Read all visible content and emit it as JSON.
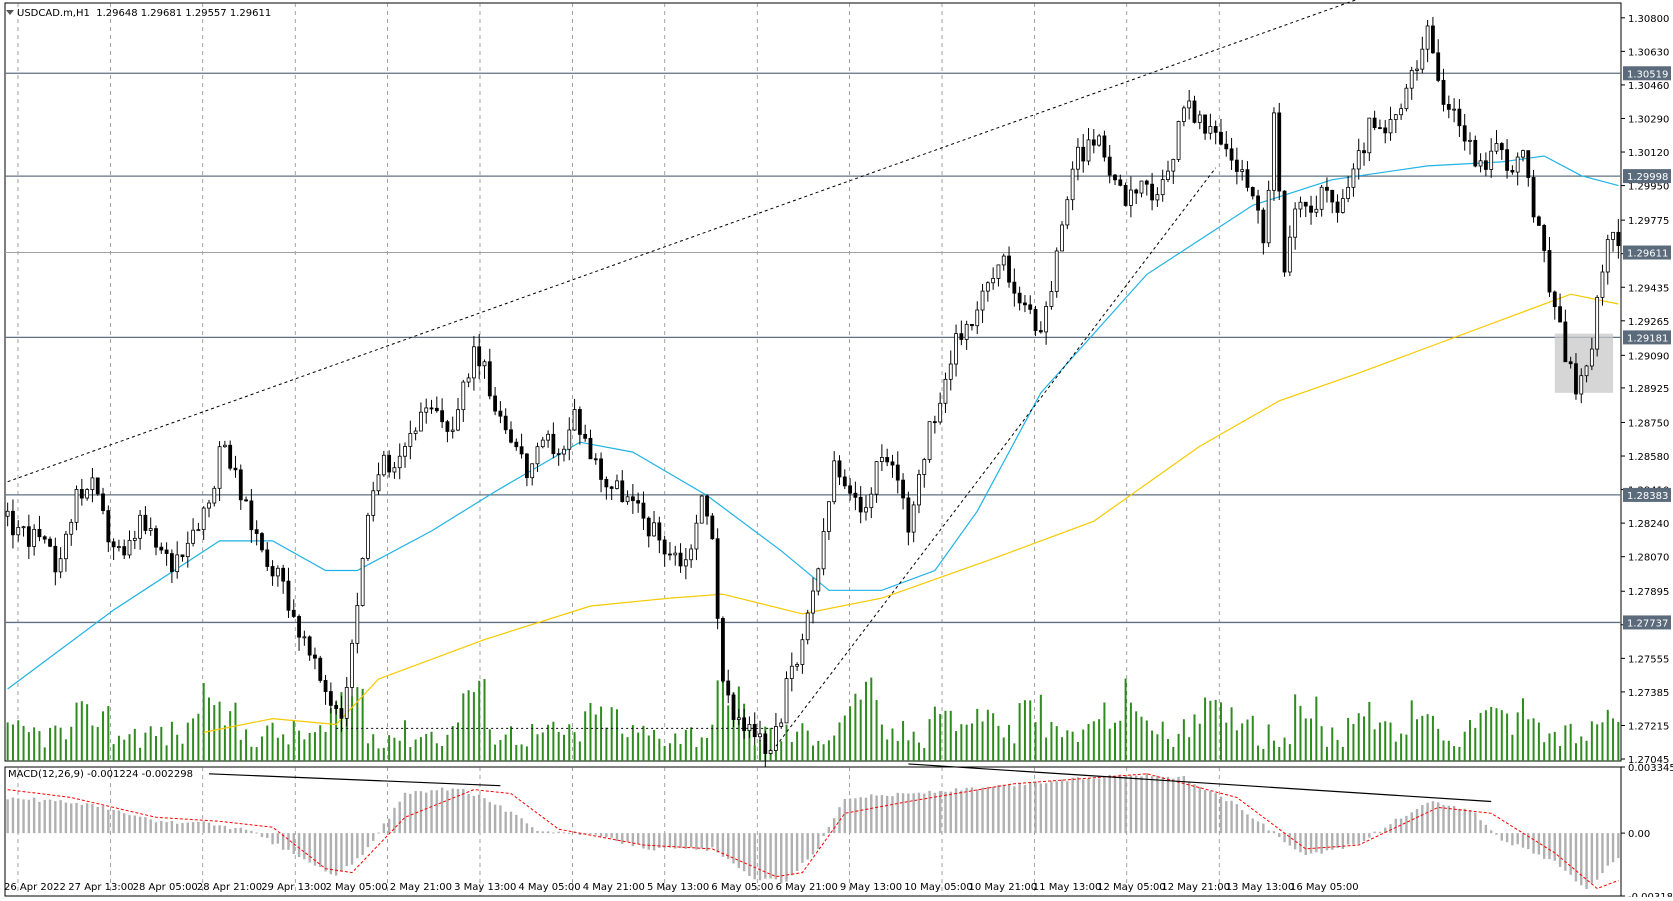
{
  "header": {
    "symbol": "USDCAD.m,H1",
    "ohlc": "1.29648 1.29681 1.29557 1.29611"
  },
  "chart_data": [
    {
      "type": "candlestick",
      "title": "USDCAD.m,H1",
      "ylim": [
        1.27035,
        1.30875
      ],
      "price_ticks": [
        "1.30800",
        "1.30630",
        "1.30460",
        "1.30290",
        "1.30120",
        "1.29950",
        "1.29775",
        "1.29605",
        "1.29435",
        "1.29265",
        "1.29090",
        "1.28925",
        "1.28750",
        "1.28580",
        "1.28410",
        "1.28240",
        "1.28070",
        "1.27895",
        "1.27725",
        "1.27555",
        "1.27385",
        "1.27215",
        "1.27045"
      ],
      "x_labels": [
        "26 Apr 2022",
        "27 Apr 13:00",
        "28 Apr 05:00",
        "28 Apr 21:00",
        "29 Apr 13:00",
        "2 May 05:00",
        "2 May 21:00",
        "3 May 13:00",
        "4 May 05:00",
        "4 May 21:00",
        "5 May 13:00",
        "6 May 05:00",
        "6 May 21:00",
        "9 May 13:00",
        "10 May 05:00",
        "10 May 21:00",
        "11 May 13:00",
        "12 May 05:00",
        "12 May 21:00",
        "13 May 13:00",
        "16 May 05:00"
      ],
      "close_path": [
        [
          0,
          1.28245
        ],
        [
          6,
          1.2815
        ],
        [
          10,
          1.28
        ],
        [
          13,
          1.284
        ],
        [
          16,
          1.2842
        ],
        [
          19,
          1.2818
        ],
        [
          22,
          1.2805
        ],
        [
          25,
          1.2825
        ],
        [
          28,
          1.2812
        ],
        [
          31,
          1.2803
        ],
        [
          34,
          1.2818
        ],
        [
          38,
          1.2835
        ],
        [
          40,
          1.286
        ],
        [
          42,
          1.2855
        ],
        [
          45,
          1.283
        ],
        [
          48,
          1.2812
        ],
        [
          52,
          1.2793
        ],
        [
          55,
          1.277
        ],
        [
          58,
          1.275
        ],
        [
          61,
          1.2735
        ],
        [
          63,
          1.27285
        ],
        [
          65,
          1.276
        ],
        [
          67,
          1.281
        ],
        [
          70,
          1.285
        ],
        [
          74,
          1.286
        ],
        [
          77,
          1.2875
        ],
        [
          80,
          1.288
        ],
        [
          84,
          1.2872
        ],
        [
          86,
          1.289
        ],
        [
          88,
          1.2915
        ],
        [
          92,
          1.2885
        ],
        [
          95,
          1.287
        ],
        [
          98,
          1.285
        ],
        [
          102,
          1.2865
        ],
        [
          105,
          1.286
        ],
        [
          107,
          1.288
        ],
        [
          110,
          1.286
        ],
        [
          113,
          1.2845
        ],
        [
          116,
          1.284
        ],
        [
          119,
          1.283
        ],
        [
          122,
          1.282
        ],
        [
          125,
          1.281
        ],
        [
          128,
          1.2805
        ],
        [
          131,
          1.2835
        ],
        [
          133,
          1.282
        ],
        [
          135,
          1.274
        ],
        [
          137,
          1.273
        ],
        [
          140,
          1.272
        ],
        [
          143,
          1.271
        ],
        [
          145,
          1.2715
        ],
        [
          147,
          1.274
        ],
        [
          150,
          1.276
        ],
        [
          152,
          1.279
        ],
        [
          154,
          1.2815
        ],
        [
          156,
          1.2855
        ],
        [
          158,
          1.284
        ],
        [
          161,
          1.283
        ],
        [
          164,
          1.285
        ],
        [
          167,
          1.2855
        ],
        [
          170,
          1.2825
        ],
        [
          172,
          1.285
        ],
        [
          175,
          1.288
        ],
        [
          178,
          1.291
        ],
        [
          182,
          1.293
        ],
        [
          185,
          1.2945
        ],
        [
          188,
          1.2955
        ],
        [
          191,
          1.294
        ],
        [
          194,
          1.292
        ],
        [
          197,
          1.294
        ],
        [
          199,
          1.298
        ],
        [
          202,
          1.301
        ],
        [
          205,
          1.302
        ],
        [
          208,
          1.3005
        ],
        [
          211,
          1.299
        ],
        [
          214,
          1.3
        ],
        [
          217,
          1.2985
        ],
        [
          220,
          1.301
        ],
        [
          222,
          1.304
        ],
        [
          225,
          1.3025
        ],
        [
          228,
          1.302
        ],
        [
          231,
          1.301
        ],
        [
          233,
          1.3
        ],
        [
          235,
          1.2995
        ],
        [
          237,
          1.2965
        ],
        [
          239,
          1.303
        ],
        [
          241,
          1.295
        ],
        [
          243,
          1.298
        ],
        [
          245,
          1.2985
        ],
        [
          248,
          1.299
        ],
        [
          251,
          1.2985
        ],
        [
          254,
          1.3
        ],
        [
          257,
          1.3025
        ],
        [
          260,
          1.302
        ],
        [
          263,
          1.3035
        ],
        [
          266,
          1.3055
        ],
        [
          268,
          1.307
        ],
        [
          270,
          1.3045
        ],
        [
          273,
          1.3035
        ],
        [
          275,
          1.302
        ],
        [
          278,
          1.3005
        ],
        [
          281,
          1.3015
        ],
        [
          284,
          1.3005
        ],
        [
          286,
          1.301
        ],
        [
          288,
          1.298
        ],
        [
          290,
          1.296
        ],
        [
          292,
          1.293
        ],
        [
          294,
          1.291
        ],
        [
          296,
          1.2895
        ],
        [
          298,
          1.29
        ],
        [
          300,
          1.2935
        ],
        [
          302,
          1.297
        ],
        [
          304,
          1.2962
        ]
      ],
      "ma50": [
        [
          0,
          1.274
        ],
        [
          20,
          1.278
        ],
        [
          40,
          1.2815
        ],
        [
          50,
          1.2815
        ],
        [
          60,
          1.28
        ],
        [
          66,
          1.28
        ],
        [
          80,
          1.282
        ],
        [
          92,
          1.284
        ],
        [
          108,
          1.2865
        ],
        [
          118,
          1.286
        ],
        [
          132,
          1.2838
        ],
        [
          146,
          1.281
        ],
        [
          155,
          1.279
        ],
        [
          165,
          1.279
        ],
        [
          175,
          1.28
        ],
        [
          183,
          1.283
        ],
        [
          195,
          1.289
        ],
        [
          215,
          1.295
        ],
        [
          235,
          1.2985
        ],
        [
          250,
          1.2998
        ],
        [
          268,
          1.3005
        ],
        [
          282,
          1.3007
        ],
        [
          290,
          1.301
        ],
        [
          297,
          1.3
        ],
        [
          304,
          1.2995
        ]
      ],
      "ma200": [
        [
          37,
          1.2718
        ],
        [
          50,
          1.2725
        ],
        [
          62,
          1.2722
        ],
        [
          70,
          1.2745
        ],
        [
          90,
          1.2765
        ],
        [
          110,
          1.2782
        ],
        [
          125,
          1.2786
        ],
        [
          135,
          1.2788
        ],
        [
          150,
          1.2778
        ],
        [
          165,
          1.2786
        ],
        [
          185,
          1.2805
        ],
        [
          205,
          1.2825
        ],
        [
          225,
          1.2863
        ],
        [
          240,
          1.2886
        ],
        [
          255,
          1.29
        ],
        [
          270,
          1.2915
        ],
        [
          285,
          1.293
        ],
        [
          295,
          1.294
        ],
        [
          304,
          1.2935
        ]
      ],
      "hlines": [
        1.30519,
        1.29998,
        1.29181,
        1.28383,
        1.27737
      ],
      "current_price": 1.29611,
      "price_badges": [
        "1.30519",
        "1.29998",
        "1.29611",
        "1.29181",
        "1.28383",
        "1.27737"
      ],
      "annotations": {
        "upper_trendline": [
          [
            0,
            1.2845
          ],
          [
            270,
            1.3104
          ]
        ],
        "lower_trendline": [
          [
            145,
            1.2711
          ],
          [
            228,
            1.3004
          ]
        ],
        "support_dotted": [
          [
            62,
            1.272
          ],
          [
            145,
            1.272
          ]
        ],
        "highlight_box": {
          "x0": 292,
          "x1": 303,
          "y0": 1.289,
          "y1": 1.292
        }
      },
      "colors": {
        "bull": "#ffffff",
        "bear": "#000000",
        "ma50": "#1fb2e6",
        "ma200": "#f7c900",
        "volume": "#2e8b1e",
        "grid": "#666666",
        "hline": "#607080"
      }
    },
    {
      "type": "histogram",
      "title": "MACD(12,26,9) -0.001224 -0.002298",
      "ylim": [
        -0.003182,
        0.003345
      ],
      "ticks": [
        "0.003345",
        "0.00",
        "-0.003182"
      ],
      "histogram": [
        [
          0,
          0.0018
        ],
        [
          15,
          0.0015
        ],
        [
          28,
          0.0006
        ],
        [
          38,
          0.0005
        ],
        [
          46,
          0.0001
        ],
        [
          55,
          -0.0012
        ],
        [
          62,
          -0.0022
        ],
        [
          68,
          -0.0008
        ],
        [
          75,
          0.002
        ],
        [
          85,
          0.0023
        ],
        [
          92,
          0.0015
        ],
        [
          100,
          0.0002
        ],
        [
          110,
          -0.0001
        ],
        [
          122,
          -0.0008
        ],
        [
          133,
          -0.0008
        ],
        [
          140,
          -0.0022
        ],
        [
          147,
          -0.0025
        ],
        [
          153,
          -0.0007
        ],
        [
          158,
          0.0018
        ],
        [
          170,
          0.002
        ],
        [
          185,
          0.0023
        ],
        [
          200,
          0.0027
        ],
        [
          212,
          0.003
        ],
        [
          222,
          0.0028
        ],
        [
          232,
          0.0014
        ],
        [
          245,
          -0.0012
        ],
        [
          255,
          -0.0005
        ],
        [
          268,
          0.0016
        ],
        [
          276,
          0.0012
        ],
        [
          282,
          -0.0003
        ],
        [
          292,
          -0.0015
        ],
        [
          298,
          -0.0028
        ],
        [
          304,
          -0.0012
        ]
      ],
      "signal": [
        [
          0,
          0.0022
        ],
        [
          12,
          0.0018
        ],
        [
          28,
          0.0008
        ],
        [
          40,
          0.0006
        ],
        [
          50,
          0.0003
        ],
        [
          60,
          -0.0018
        ],
        [
          65,
          -0.002
        ],
        [
          75,
          0.0008
        ],
        [
          88,
          0.0022
        ],
        [
          95,
          0.002
        ],
        [
          104,
          0.0002
        ],
        [
          120,
          -0.0006
        ],
        [
          133,
          -0.0008
        ],
        [
          145,
          -0.0022
        ],
        [
          150,
          -0.002
        ],
        [
          158,
          0.001
        ],
        [
          170,
          0.0016
        ],
        [
          190,
          0.0025
        ],
        [
          215,
          0.003
        ],
        [
          232,
          0.0018
        ],
        [
          245,
          -0.0008
        ],
        [
          255,
          -0.0006
        ],
        [
          270,
          0.0013
        ],
        [
          280,
          0.001
        ],
        [
          292,
          -0.001
        ],
        [
          300,
          -0.0028
        ],
        [
          304,
          -0.0024
        ]
      ],
      "trendlines": [
        [
          [
            38,
            0.003
          ],
          [
            93,
            0.0024
          ]
        ],
        [
          [
            170,
            0.0035
          ],
          [
            280,
            0.0016
          ]
        ]
      ],
      "colors": {
        "histogram": "#b0b0b0",
        "signal": "#ff0000",
        "trend": "#000000"
      }
    }
  ]
}
